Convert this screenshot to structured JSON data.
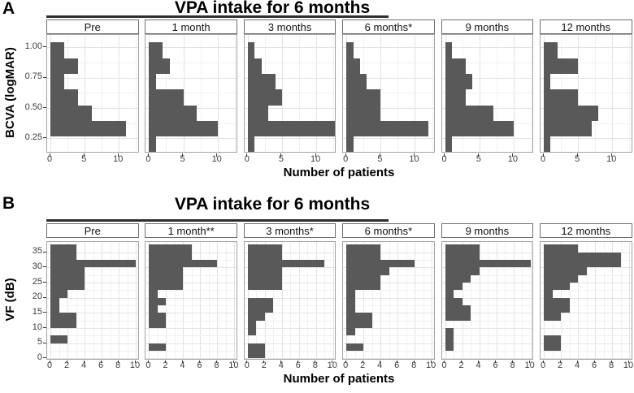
{
  "page": {
    "panel_a": {
      "label": "A",
      "title": "VPA intake for 6 months",
      "y_axis_title": "BCVA (logMAR)",
      "x_axis_title": "Number of patients"
    },
    "panel_b": {
      "label": "B",
      "title": "VPA intake for 6 months",
      "y_axis_title": "VF (dB)",
      "x_axis_title": "Number of patients"
    }
  },
  "colors": {
    "bar": "#595959",
    "grid_major": "#e3e3e3",
    "grid_minor": "#f1f1f1",
    "panel_border": "#a3a3a3",
    "strip_border": "#6e6e6e",
    "tick_text": "#3c3c3c",
    "title_underline": "#2e2e2e"
  },
  "chart_data": [
    {
      "type": "bar",
      "panel": "A",
      "orientation": "horizontal-histogram",
      "title": "VPA intake for 6 months",
      "xlabel": "Number of patients",
      "ylabel": "BCVA (logMAR)",
      "xlim": [
        0,
        13.5
      ],
      "x_ticks": [
        0,
        5,
        10
      ],
      "y_tick_labels": [
        "1.00",
        "0.75",
        "0.50",
        "0.25"
      ],
      "bins_note": "7 BCVA bins listed from highest logMAR (top) to lowest (bottom), approx centers below",
      "bin_centers": [
        1.05,
        0.9,
        0.75,
        0.6,
        0.45,
        0.3,
        0.15
      ],
      "facets": [
        {
          "name": "Pre",
          "counts": [
            2,
            4,
            2,
            4,
            6,
            11,
            0
          ]
        },
        {
          "name": "1 month",
          "counts": [
            2,
            3,
            1,
            5,
            7,
            10,
            1
          ]
        },
        {
          "name": "3 months",
          "counts": [
            1,
            2,
            4,
            5,
            3,
            13,
            1
          ]
        },
        {
          "name": "6 months*",
          "counts": [
            1,
            2,
            3,
            5,
            5,
            12,
            1
          ]
        },
        {
          "name": "9 months",
          "counts": [
            1,
            3,
            4,
            3,
            7,
            10,
            1
          ]
        },
        {
          "name": "12 months",
          "counts": [
            2,
            5,
            1,
            5,
            8,
            7,
            1
          ]
        }
      ]
    },
    {
      "type": "bar",
      "panel": "B",
      "orientation": "horizontal-histogram",
      "title": "VPA intake for 6 months",
      "xlabel": "Number of patients",
      "ylabel": "VF (dB)",
      "xlim": [
        0,
        10.4
      ],
      "x_ticks": [
        0,
        2,
        4,
        6,
        8,
        10
      ],
      "y_tick_labels": [
        "35",
        "30",
        "25",
        "20",
        "15",
        "10",
        "5",
        "0"
      ],
      "bins_note": "15 VF bins of 2.5 dB listed from ~37.5 dB (top) down to 0 dB (bottom), centers below",
      "bin_centers": [
        36.25,
        33.75,
        31.25,
        28.75,
        26.25,
        23.75,
        21.25,
        18.75,
        16.25,
        13.75,
        11.25,
        8.75,
        6.25,
        3.75,
        1.25
      ],
      "facets": [
        {
          "name": "Pre",
          "counts": [
            3,
            3,
            10,
            4,
            4,
            4,
            2,
            1,
            1,
            3,
            3,
            0,
            2,
            0,
            0
          ]
        },
        {
          "name": "1 month**",
          "counts": [
            5,
            5,
            8,
            4,
            4,
            4,
            1,
            2,
            1,
            2,
            2,
            0,
            0,
            2,
            0
          ]
        },
        {
          "name": "3 months*",
          "counts": [
            4,
            4,
            9,
            4,
            4,
            4,
            0,
            3,
            3,
            2,
            1,
            1,
            0,
            2,
            2
          ]
        },
        {
          "name": "6 months*",
          "counts": [
            4,
            4,
            8,
            5,
            4,
            4,
            1,
            1,
            1,
            3,
            3,
            1,
            0,
            2,
            0
          ]
        },
        {
          "name": "9 months",
          "counts": [
            4,
            4,
            10,
            4,
            3,
            2,
            1,
            2,
            3,
            3,
            0,
            1,
            1,
            1,
            0
          ]
        },
        {
          "name": "12 months",
          "counts": [
            4,
            9,
            9,
            5,
            4,
            3,
            1,
            3,
            3,
            2,
            0,
            0,
            2,
            2,
            0
          ]
        }
      ]
    }
  ]
}
